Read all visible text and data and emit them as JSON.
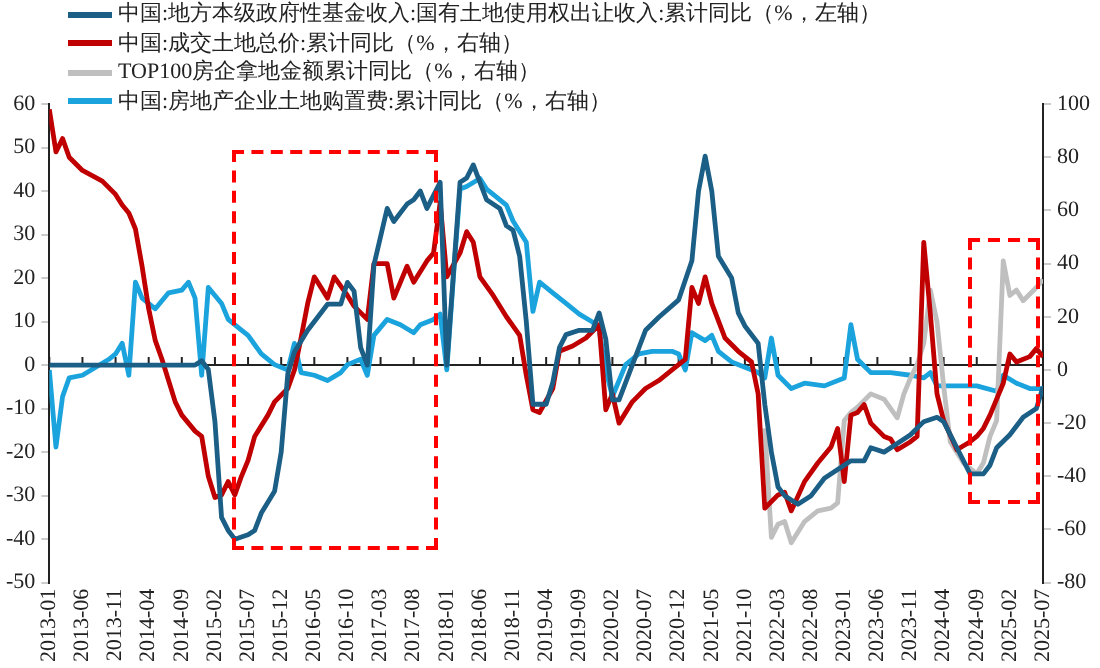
{
  "chart_data": {
    "type": "line",
    "legend": "top left",
    "xlim": [
      "2013-01",
      "2025-07"
    ],
    "xticks": [
      "2013-01",
      "2013-06",
      "2013-11",
      "2014-04",
      "2014-09",
      "2015-02",
      "2015-07",
      "2015-12",
      "2016-05",
      "2016-10",
      "2017-03",
      "2017-08",
      "2018-01",
      "2018-06",
      "2018-11",
      "2019-04",
      "2019-09",
      "2020-02",
      "2020-07",
      "2020-12",
      "2021-05",
      "2021-10",
      "2022-03",
      "2022-08",
      "2023-01",
      "2023-06",
      "2023-11",
      "2024-04",
      "2024-09",
      "2025-02",
      "2025-07"
    ],
    "ylim": [
      -50,
      60
    ],
    "yticks": [
      -50,
      -40,
      -30,
      -20,
      -10,
      0,
      10,
      20,
      30,
      40,
      50,
      60
    ],
    "y2lim": [
      -80,
      100
    ],
    "y2ticks": [
      -80,
      -60,
      -40,
      -20,
      0,
      20,
      40,
      60,
      80,
      100
    ],
    "series": [
      {
        "name": "中国:地方本级政府性基金收入:国有土地使用权出让收入:累计同比（%，左轴）",
        "color": "#1b5e86",
        "x": [
          "2013-01",
          "2014-11",
          "2014-12",
          "2015-01",
          "2015-02",
          "2015-03",
          "2015-04",
          "2015-05",
          "2015-07",
          "2015-08",
          "2015-09",
          "2015-11",
          "2015-12",
          "2016-01",
          "2016-02",
          "2016-04",
          "2016-07",
          "2016-09",
          "2016-10",
          "2016-11",
          "2016-12",
          "2017-01",
          "2017-02",
          "2017-04",
          "2017-05",
          "2017-07",
          "2017-08",
          "2017-09",
          "2017-10",
          "2017-12",
          "2018-01",
          "2018-03",
          "2018-04",
          "2018-05",
          "2018-07",
          "2018-09",
          "2018-10",
          "2018-11",
          "2018-12",
          "2019-01",
          "2019-02",
          "2019-04",
          "2019-05",
          "2019-06",
          "2019-07",
          "2019-09",
          "2019-11",
          "2019-12",
          "2020-01",
          "2020-02",
          "2020-03",
          "2020-05",
          "2020-07",
          "2020-09",
          "2020-12",
          "2021-02",
          "2021-03",
          "2021-04",
          "2021-05",
          "2021-06",
          "2021-08",
          "2021-09",
          "2021-10",
          "2021-12",
          "2022-01",
          "2022-02",
          "2022-03",
          "2022-04",
          "2022-06",
          "2022-08",
          "2022-10",
          "2022-12",
          "2023-02",
          "2023-04",
          "2023-05",
          "2023-07",
          "2023-09",
          "2023-11",
          "2024-01",
          "2024-03",
          "2024-04",
          "2024-06",
          "2024-08",
          "2024-10",
          "2024-11",
          "2024-12",
          "2025-02",
          "2025-04",
          "2025-06",
          "2025-07"
        ],
        "values": [
          0,
          0,
          1,
          -1,
          -13,
          -35,
          -38,
          -40,
          -39,
          -38,
          -34,
          -29,
          -20,
          -2,
          3,
          8,
          14,
          14,
          19,
          17,
          4,
          0,
          23,
          36,
          33,
          37,
          38,
          40,
          36,
          42,
          0,
          42,
          43,
          46,
          38,
          36,
          32,
          31,
          25,
          10,
          -9,
          -9,
          -4,
          4,
          7,
          8,
          8,
          12,
          6,
          -8,
          -8,
          0,
          8,
          11,
          15,
          24,
          40,
          48,
          40,
          25,
          20,
          12,
          9,
          5,
          -9,
          -20,
          -28,
          -30,
          -32,
          -30,
          -26,
          -24,
          -22,
          -22,
          -19,
          -20,
          -18,
          -16,
          -13,
          -12,
          -13,
          -19,
          -25,
          -25,
          -23,
          -19,
          -16,
          -12,
          -10,
          -5
        ]
      },
      {
        "name": "中国:成交土地总价:累计同比（%，右轴）",
        "color": "#c00000",
        "axis": "y2",
        "x": [
          "2013-01",
          "2013-02",
          "2013-03",
          "2013-04",
          "2013-06",
          "2013-09",
          "2013-11",
          "2013-12",
          "2014-01",
          "2014-02",
          "2014-03",
          "2014-04",
          "2014-05",
          "2014-06",
          "2014-07",
          "2014-08",
          "2014-09",
          "2014-11",
          "2014-12",
          "2015-01",
          "2015-02",
          "2015-03",
          "2015-04",
          "2015-05",
          "2015-06",
          "2015-07",
          "2015-08",
          "2015-10",
          "2015-11",
          "2016-01",
          "2016-02",
          "2016-03",
          "2016-04",
          "2016-05",
          "2016-07",
          "2016-08",
          "2016-10",
          "2016-11",
          "2017-01",
          "2017-02",
          "2017-04",
          "2017-05",
          "2017-07",
          "2017-08",
          "2017-10",
          "2017-11",
          "2017-12",
          "2018-01",
          "2018-03",
          "2018-04",
          "2018-05",
          "2018-06",
          "2018-08",
          "2018-10",
          "2018-12",
          "2019-01",
          "2019-02",
          "2019-03",
          "2019-05",
          "2019-06",
          "2019-08",
          "2019-10",
          "2019-12",
          "2020-01",
          "2020-02",
          "2020-03",
          "2020-05",
          "2020-07",
          "2020-09",
          "2020-11",
          "2021-01",
          "2021-02",
          "2021-03",
          "2021-04",
          "2021-05",
          "2021-07",
          "2021-09",
          "2021-11",
          "2021-12",
          "2022-01",
          "2022-03",
          "2022-04",
          "2022-05",
          "2022-07",
          "2022-09",
          "2022-11",
          "2022-12",
          "2023-01",
          "2023-02",
          "2023-03",
          "2023-04",
          "2023-05",
          "2023-07",
          "2023-08",
          "2023-09",
          "2023-11",
          "2023-12",
          "2024-01",
          "2024-02",
          "2024-03",
          "2024-04",
          "2024-06",
          "2024-08",
          "2024-09",
          "2024-10",
          "2024-11",
          "2024-12",
          "2025-01",
          "2025-02",
          "2025-03",
          "2025-05",
          "2025-06",
          "2025-07"
        ],
        "values": [
          98,
          82,
          87,
          80,
          75,
          71,
          66,
          62,
          59,
          53,
          39,
          23,
          11,
          4,
          -4,
          -12,
          -17,
          -23,
          -25,
          -40,
          -48,
          -47,
          -42,
          -47,
          -40,
          -34,
          -25,
          -17,
          -12,
          -7,
          0,
          12,
          25,
          35,
          27,
          35,
          28,
          24,
          19,
          40,
          40,
          27,
          39,
          33,
          41,
          44,
          63,
          35,
          44,
          52,
          48,
          35,
          28,
          20,
          13,
          -2,
          -15,
          -16,
          -7,
          7,
          9,
          12,
          17,
          -15,
          -9,
          -20,
          -12,
          -7,
          -4,
          0,
          4,
          31,
          25,
          35,
          25,
          12,
          7,
          3,
          -9,
          -52,
          -47,
          -46,
          -53,
          -42,
          -35,
          -29,
          -22,
          -42,
          -17,
          -16,
          -13,
          -20,
          -25,
          -26,
          -30,
          -27,
          -25,
          48,
          21,
          -9,
          -19,
          -30,
          -27,
          -25,
          -22,
          -17,
          -11,
          -5,
          6,
          3,
          5,
          8,
          5
        ]
      },
      {
        "name": "TOP100房企拿地金额累计同比（%，右轴）",
        "color": "#bfbfbf",
        "axis": "y2",
        "x": [
          "2022-01",
          "2022-02",
          "2022-03",
          "2022-04",
          "2022-05",
          "2022-07",
          "2022-09",
          "2022-11",
          "2022-12",
          "2023-01",
          "2023-02",
          "2023-03",
          "2023-05",
          "2023-07",
          "2023-09",
          "2023-10",
          "2023-11",
          "2023-12",
          "2024-01",
          "2024-02",
          "2024-03",
          "2024-04",
          "2024-05",
          "2024-07",
          "2024-09",
          "2024-10",
          "2024-11",
          "2024-12",
          "2025-01",
          "2025-02",
          "2025-03",
          "2025-04",
          "2025-06",
          "2025-07"
        ],
        "values": [
          -22,
          -63,
          -58,
          -57,
          -65,
          -57,
          -53,
          -52,
          -50,
          -19,
          -16,
          -14,
          -9,
          -11,
          -18,
          -9,
          -3,
          2,
          10,
          30,
          18,
          -6,
          -27,
          -35,
          -39,
          -35,
          -25,
          -19,
          41,
          28,
          30,
          26,
          31,
          34
        ]
      },
      {
        "name": "中国:房地产企业土地购置费:累计同比（%，右轴）",
        "color": "#1aa3dc",
        "axis": "y2",
        "x": [
          "2013-01",
          "2013-02",
          "2013-03",
          "2013-04",
          "2013-06",
          "2013-08",
          "2013-10",
          "2013-11",
          "2013-12",
          "2014-01",
          "2014-02",
          "2014-03",
          "2014-05",
          "2014-07",
          "2014-09",
          "2014-10",
          "2014-11",
          "2014-12",
          "2015-01",
          "2015-03",
          "2015-04",
          "2015-06",
          "2015-07",
          "2015-09",
          "2015-11",
          "2016-01",
          "2016-02",
          "2016-03",
          "2016-05",
          "2016-07",
          "2016-09",
          "2016-10",
          "2016-12",
          "2017-01",
          "2017-02",
          "2017-04",
          "2017-06",
          "2017-08",
          "2017-09",
          "2017-11",
          "2017-12",
          "2018-01",
          "2018-02",
          "2018-03",
          "2018-04",
          "2018-06",
          "2018-07",
          "2018-08",
          "2018-10",
          "2018-11",
          "2019-01",
          "2019-02",
          "2019-03",
          "2019-05",
          "2019-07",
          "2019-09",
          "2019-11",
          "2019-12",
          "2020-01",
          "2020-02",
          "2020-04",
          "2020-06",
          "2020-08",
          "2020-11",
          "2020-12",
          "2021-01",
          "2021-02",
          "2021-04",
          "2021-05",
          "2021-06",
          "2021-08",
          "2021-10",
          "2021-12",
          "2022-01",
          "2022-02",
          "2022-03",
          "2022-05",
          "2022-07",
          "2022-10",
          "2023-01",
          "2023-02",
          "2023-03",
          "2023-05",
          "2023-08",
          "2023-11",
          "2024-01",
          "2024-02",
          "2024-03",
          "2024-06",
          "2024-09",
          "2024-12",
          "2025-01",
          "2025-03",
          "2025-05",
          "2025-07"
        ],
        "values": [
          0,
          -29,
          -10,
          -3,
          -2,
          1,
          4,
          6,
          10,
          -2,
          33,
          27,
          23,
          29,
          30,
          33,
          27,
          -2,
          31,
          25,
          19,
          15,
          13,
          6,
          2,
          0,
          10,
          -1,
          -2,
          -4,
          -1,
          2,
          4,
          -2,
          13,
          19,
          17,
          14,
          17,
          19,
          21,
          0,
          35,
          68,
          69,
          72,
          68,
          66,
          62,
          56,
          48,
          22,
          33,
          29,
          25,
          21,
          18,
          15,
          0,
          -10,
          2,
          6,
          7,
          7,
          6,
          0,
          14,
          11,
          13,
          7,
          3,
          1,
          -1,
          -3,
          12,
          -2,
          -7,
          -5,
          -6,
          -3,
          17,
          4,
          -1,
          -1,
          -2,
          -3,
          -1,
          -6,
          -6,
          -6,
          -8,
          -2,
          -5,
          -7,
          -7
        ]
      }
    ]
  }
}
